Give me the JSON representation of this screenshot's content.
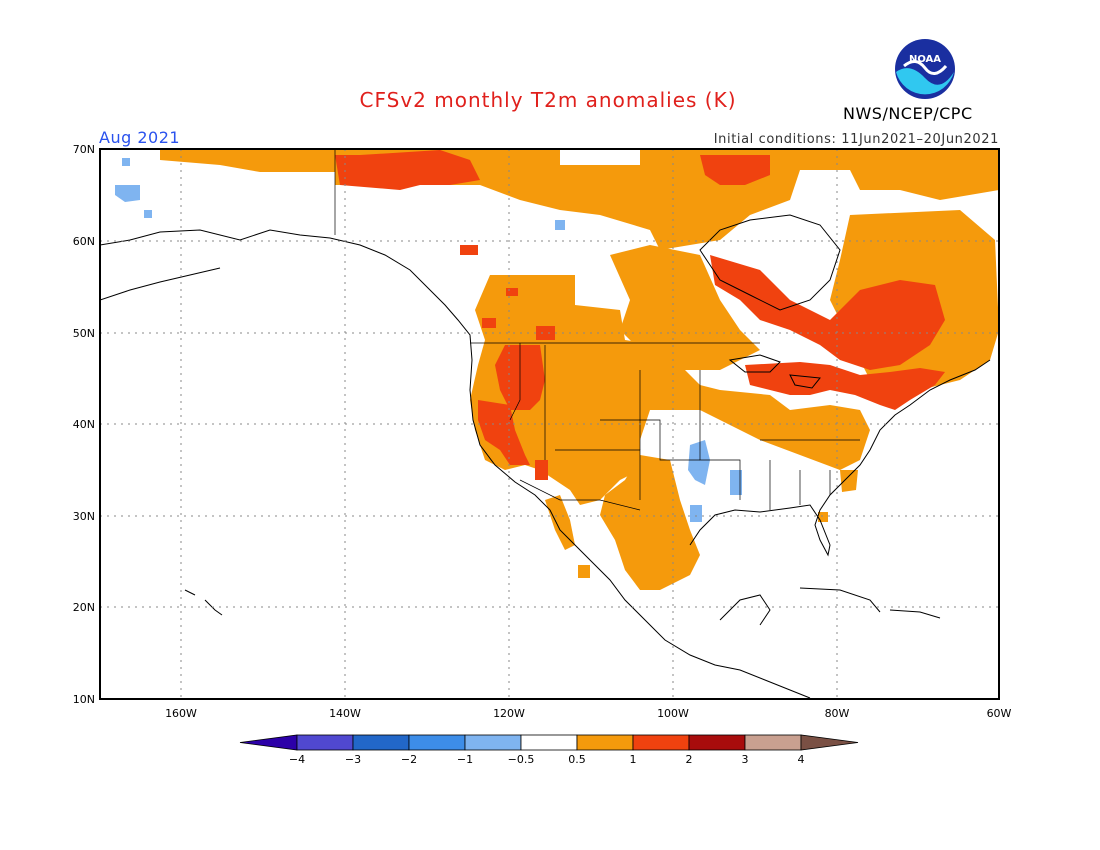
{
  "title": "CFSv2 monthly T2m anomalies (K)",
  "valid_month": "Aug 2021",
  "initial_conditions": "Initial conditions: 11Jun2021–20Jun2021",
  "organization": "NWS/NCEP/CPC",
  "logo_text": "NOAA",
  "colors": {
    "title": "#e0201c",
    "month": "#2a52ee",
    "warm_0_5_1": "#f59a0c",
    "warm_1_2": "#f0420f",
    "cool_n1_n0_5": "#7fb4f0"
  },
  "map": {
    "lat_labels": [
      "70N",
      "60N",
      "50N",
      "40N",
      "30N",
      "20N",
      "10N"
    ],
    "lon_labels": [
      "160W",
      "140W",
      "120W",
      "100W",
      "80W",
      "60W"
    ]
  },
  "colorbar": {
    "labels": [
      "−4",
      "−3",
      "−2",
      "−1",
      "−0.5",
      "0.5",
      "1",
      "2",
      "3",
      "4"
    ],
    "colors": [
      "#2c00a8",
      "#5048d0",
      "#2267c8",
      "#3d8de8",
      "#7fb4f0",
      "#ffffff",
      "#f59a0c",
      "#f0420f",
      "#a80c0c",
      "#c9a090",
      "#7a5044"
    ]
  }
}
